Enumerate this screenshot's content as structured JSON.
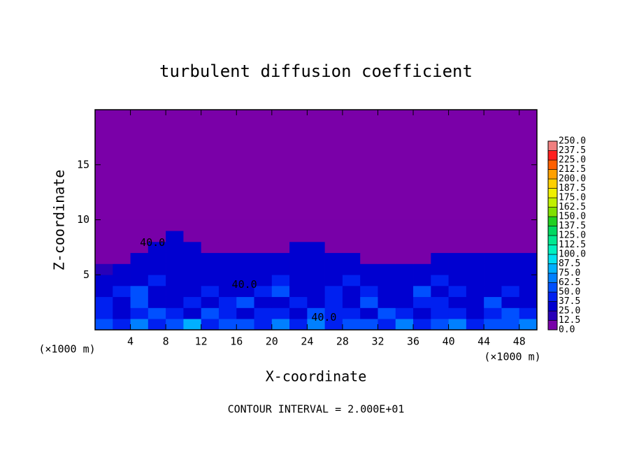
{
  "chart_data": {
    "type": "contour",
    "title": "turbulent diffusion coefficient",
    "x_label": "X-coordinate",
    "y_label": "Z-coordinate",
    "unit_labels": [
      "(×1000 m)",
      "(×1000 m)"
    ],
    "annotation": "CONTOUR INTERVAL = 2.000E+01",
    "xlim": [
      0,
      50
    ],
    "xticks": [
      4,
      8,
      12,
      16,
      20,
      24,
      28,
      32,
      36,
      40,
      44,
      48
    ],
    "ylim": [
      0,
      20
    ],
    "yticks": [
      5,
      10,
      15
    ],
    "background_color": "#7a00a8",
    "x": [
      1,
      3,
      5,
      7,
      9,
      11,
      13,
      15,
      17,
      19,
      21,
      23,
      25,
      27,
      29,
      31,
      33,
      35,
      37,
      39,
      41,
      43,
      45,
      47,
      49
    ],
    "z": [
      0.5,
      1.5,
      2.5,
      3.5,
      4.5,
      5.5,
      6.5,
      7.5,
      8.5,
      9.5
    ],
    "values": [
      [
        62,
        45,
        70,
        40,
        55,
        75,
        45,
        60,
        50,
        40,
        65,
        45,
        70,
        40,
        60,
        50,
        45,
        65,
        40,
        55,
        70,
        45,
        60,
        50,
        65
      ],
      [
        45,
        35,
        40,
        60,
        38,
        35,
        62,
        40,
        35,
        42,
        38,
        36,
        55,
        40,
        38,
        35,
        60,
        40,
        36,
        38,
        45,
        35,
        40,
        60,
        38
      ],
      [
        38,
        35,
        60,
        36,
        34,
        40,
        35,
        38,
        62,
        35,
        36,
        40,
        35,
        38,
        34,
        60,
        36,
        35,
        38,
        40,
        35,
        36,
        58,
        35,
        36
      ],
      [
        36,
        38,
        55,
        35,
        33,
        36,
        40,
        34,
        35,
        38,
        60,
        35,
        36,
        40,
        35,
        38,
        34,
        36,
        60,
        35,
        38,
        36,
        35,
        38,
        34
      ],
      [
        35,
        34,
        36,
        38,
        34,
        35,
        36,
        33,
        36,
        35,
        38,
        34,
        35,
        36,
        38,
        34,
        35,
        33,
        36,
        38,
        34,
        35,
        36,
        34,
        35
      ],
      [
        12.5,
        30,
        35,
        36,
        34,
        35,
        33,
        34,
        36,
        35,
        34,
        33,
        35,
        36,
        34,
        35,
        33,
        34,
        35,
        36,
        34,
        33,
        35,
        34,
        33
      ],
      [
        0,
        0,
        30,
        34,
        35,
        33,
        34,
        35,
        34,
        33,
        34,
        35,
        33,
        34,
        30,
        0,
        0,
        0,
        0,
        30,
        33,
        34,
        33,
        32,
        30
      ],
      [
        0,
        0,
        0,
        30,
        32,
        30,
        0,
        0,
        0,
        0,
        0,
        30,
        30,
        0,
        0,
        0,
        0,
        0,
        0,
        0,
        0,
        0,
        0,
        0,
        0
      ],
      [
        0,
        0,
        0,
        0,
        25,
        0,
        0,
        0,
        0,
        0,
        0,
        0,
        0,
        0,
        0,
        0,
        0,
        0,
        0,
        0,
        0,
        0,
        0,
        0,
        0
      ],
      [
        0,
        0,
        0,
        0,
        0,
        0,
        0,
        0,
        0,
        0,
        0,
        0,
        0,
        0,
        0,
        0,
        0,
        0,
        0,
        0,
        0,
        0,
        0,
        0,
        0
      ]
    ],
    "contour_labels": [
      {
        "text": "40.0",
        "x": 6.5,
        "z": 7.9
      },
      {
        "text": "40.0",
        "x": 16.9,
        "z": 4.1
      },
      {
        "text": "40.0",
        "x": 25.9,
        "z": 1.1
      }
    ],
    "colorbar_ticks": [
      {
        "value": 0,
        "label": "0.0"
      },
      12.5,
      {
        "value": 25,
        "label": "25.0"
      },
      37.5,
      {
        "value": 50,
        "label": "50.0"
      },
      62.5,
      {
        "value": 75,
        "label": "75.0"
      },
      87.5,
      {
        "value": 100,
        "label": "100.0"
      },
      112.5,
      {
        "value": 125,
        "label": "125.0"
      },
      137.5,
      {
        "value": 150,
        "label": "150.0"
      },
      162.5,
      {
        "value": 175,
        "label": "175.0"
      },
      187.5,
      {
        "value": 200,
        "label": "200.0"
      },
      212.5,
      {
        "value": 225,
        "label": "225.0"
      },
      237.5,
      {
        "value": 250,
        "label": "250.0"
      }
    ],
    "colorbar_colors": [
      "#7800a8",
      "#2800b8",
      "#0000d0",
      "#0020f0",
      "#0050ff",
      "#0080ff",
      "#00b0ff",
      "#00e0f0",
      "#00f0c0",
      "#00e890",
      "#00d860",
      "#20d020",
      "#80e000",
      "#c0f000",
      "#f0f000",
      "#ffd000",
      "#ffa000",
      "#ff6000",
      "#ff2020",
      "#f08080"
    ]
  }
}
